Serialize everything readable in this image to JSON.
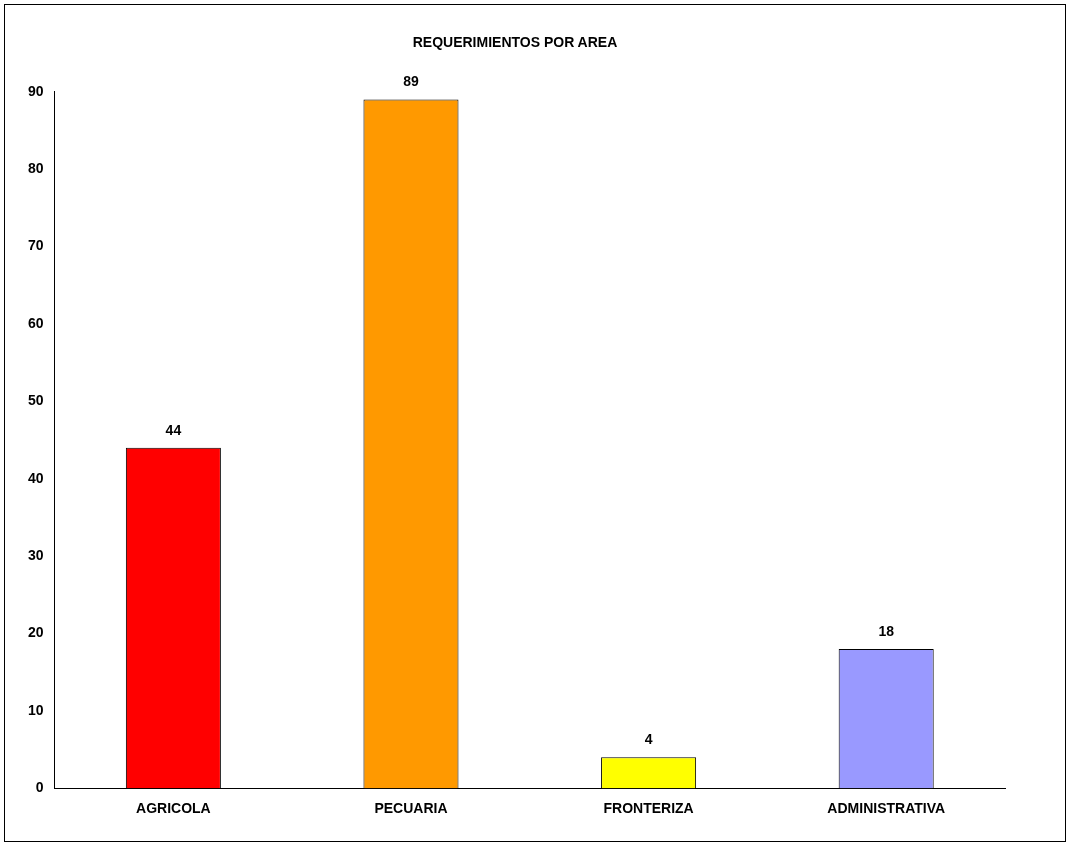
{
  "chart_data": {
    "type": "bar",
    "title": "REQUERIMIENTOS POR AREA",
    "categories": [
      "AGRICOLA",
      "PECUARIA",
      "FRONTERIZA",
      "ADMINISTRATIVA"
    ],
    "values": [
      44,
      89,
      4,
      18
    ],
    "colors": [
      "#ff0000",
      "#ff9900",
      "#ffff00",
      "#9999ff"
    ],
    "ylim": [
      0,
      90
    ],
    "yticks": [
      0,
      10,
      20,
      30,
      40,
      50,
      60,
      70,
      80,
      90
    ],
    "grid": false,
    "legend": false,
    "data_labels": true
  }
}
